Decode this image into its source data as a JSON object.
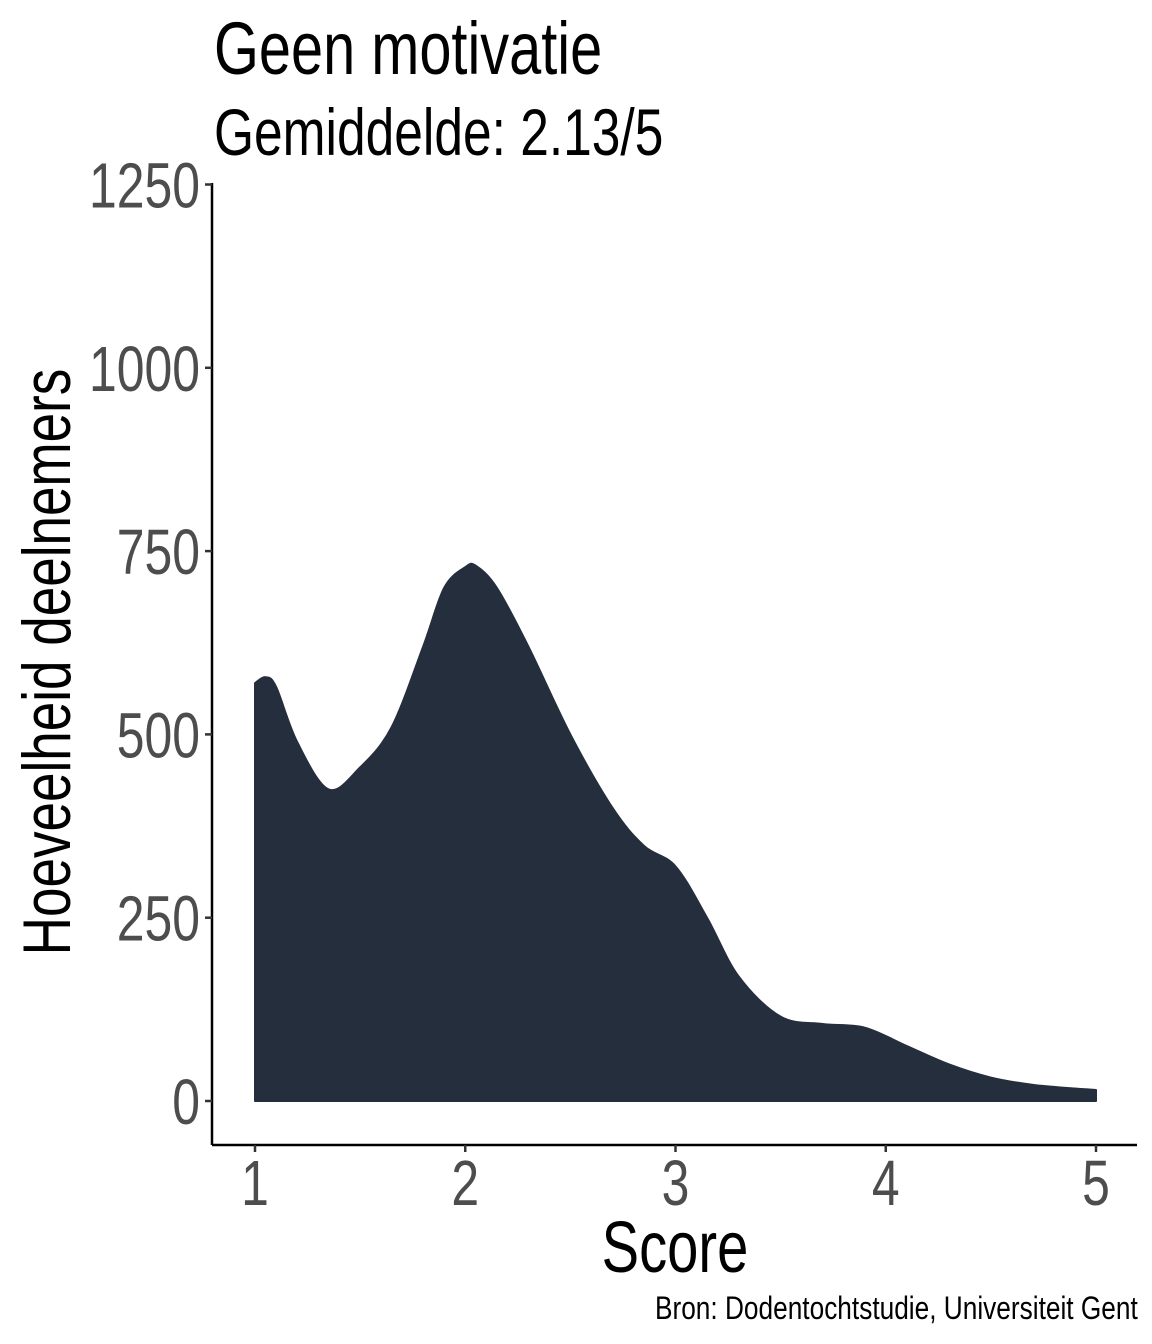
{
  "chart_data": {
    "type": "area",
    "title": "Geen motivatie",
    "subtitle": "Gemiddelde: 2.13/5",
    "xlabel": "Score",
    "ylabel": "Hoeveelheid deelnemers",
    "caption": "Bron: Dodentochtstudie, Universiteit Gent",
    "xlim": [
      0.8,
      5.2
    ],
    "ylim": [
      -60,
      1250
    ],
    "x_ticks": [
      1,
      2,
      3,
      4,
      5
    ],
    "y_ticks": [
      0,
      250,
      500,
      750,
      1000,
      1250
    ],
    "grid": false,
    "fill_color": "#252e3d",
    "series": [
      {
        "x": [
          1.0,
          1.05,
          1.1,
          1.2,
          1.35,
          1.5,
          1.65,
          1.8,
          1.9,
          2.0,
          2.05,
          2.15,
          2.3,
          2.5,
          2.7,
          2.85,
          3.0,
          3.15,
          3.3,
          3.5,
          3.7,
          3.9,
          4.1,
          4.3,
          4.5,
          4.7,
          4.9,
          5.0
        ],
        "y": [
          570,
          578,
          565,
          490,
          425,
          455,
          510,
          620,
          700,
          728,
          730,
          700,
          620,
          500,
          400,
          348,
          320,
          250,
          170,
          115,
          105,
          100,
          75,
          50,
          32,
          22,
          17,
          15
        ]
      }
    ]
  }
}
